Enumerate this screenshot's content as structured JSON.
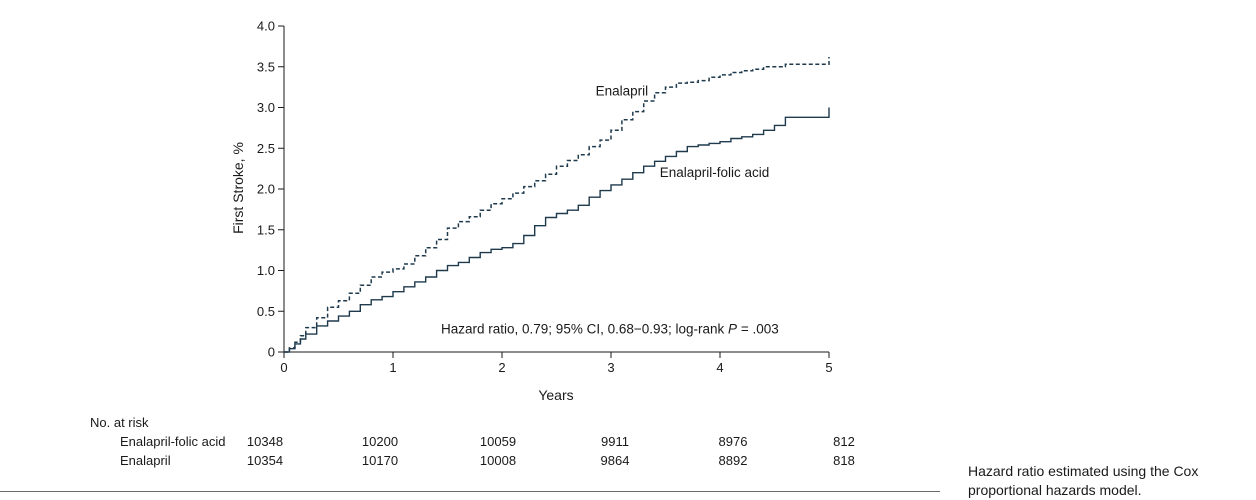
{
  "chart_data": {
    "type": "line",
    "xlabel": "Years",
    "ylabel": "First Stroke, %",
    "xlim": [
      0,
      5
    ],
    "ylim": [
      0,
      4.0
    ],
    "x_ticks": [
      0,
      1,
      2,
      3,
      4,
      5
    ],
    "x_tick_labels": [
      "0",
      "1",
      "2",
      "3",
      "4",
      "5"
    ],
    "y_ticks": [
      0,
      0.5,
      1.0,
      1.5,
      2.0,
      2.5,
      3.0,
      3.5,
      4.0
    ],
    "y_tick_labels": [
      "0",
      "0.5",
      "1.0",
      "1.5",
      "2.0",
      "2.5",
      "3.0",
      "3.5",
      "4.0"
    ],
    "grid": false,
    "series": [
      {
        "name": "Enalapril",
        "style": "dashed",
        "color": "#1f3a4d",
        "x": [
          0,
          0.05,
          0.1,
          0.15,
          0.2,
          0.3,
          0.4,
          0.5,
          0.6,
          0.7,
          0.8,
          0.9,
          1.0,
          1.1,
          1.2,
          1.3,
          1.4,
          1.5,
          1.6,
          1.7,
          1.8,
          1.9,
          2.0,
          2.1,
          2.2,
          2.3,
          2.4,
          2.5,
          2.6,
          2.7,
          2.8,
          2.9,
          3.0,
          3.1,
          3.2,
          3.3,
          3.4,
          3.5,
          3.6,
          3.7,
          3.8,
          3.9,
          4.0,
          4.1,
          4.2,
          4.3,
          4.4,
          4.5,
          4.6,
          4.7,
          4.8,
          4.9,
          4.98,
          5.0
        ],
        "y": [
          0,
          0.05,
          0.12,
          0.2,
          0.3,
          0.42,
          0.55,
          0.63,
          0.72,
          0.82,
          0.92,
          0.98,
          1.02,
          1.08,
          1.18,
          1.28,
          1.38,
          1.52,
          1.6,
          1.66,
          1.74,
          1.82,
          1.88,
          1.95,
          2.03,
          2.1,
          2.18,
          2.28,
          2.35,
          2.42,
          2.52,
          2.6,
          2.72,
          2.85,
          2.95,
          3.08,
          3.18,
          3.25,
          3.3,
          3.31,
          3.33,
          3.37,
          3.4,
          3.43,
          3.45,
          3.47,
          3.5,
          3.5,
          3.53,
          3.53,
          3.53,
          3.53,
          3.53,
          3.62
        ]
      },
      {
        "name": "Enalapril-folic acid",
        "style": "solid",
        "color": "#1f3a4d",
        "x": [
          0,
          0.05,
          0.1,
          0.15,
          0.2,
          0.3,
          0.4,
          0.5,
          0.6,
          0.7,
          0.8,
          0.9,
          1.0,
          1.1,
          1.2,
          1.3,
          1.4,
          1.5,
          1.6,
          1.7,
          1.8,
          1.9,
          2.0,
          2.1,
          2.2,
          2.3,
          2.4,
          2.5,
          2.6,
          2.7,
          2.8,
          2.9,
          3.0,
          3.1,
          3.2,
          3.3,
          3.4,
          3.5,
          3.6,
          3.7,
          3.8,
          3.9,
          4.0,
          4.1,
          4.2,
          4.3,
          4.4,
          4.5,
          4.6,
          4.7,
          4.8,
          4.9,
          4.98,
          5.0
        ],
        "y": [
          0,
          0.04,
          0.1,
          0.16,
          0.22,
          0.32,
          0.38,
          0.44,
          0.5,
          0.58,
          0.64,
          0.68,
          0.74,
          0.8,
          0.86,
          0.92,
          1.0,
          1.06,
          1.1,
          1.16,
          1.22,
          1.26,
          1.28,
          1.33,
          1.43,
          1.55,
          1.65,
          1.7,
          1.74,
          1.8,
          1.9,
          1.98,
          2.05,
          2.12,
          2.2,
          2.28,
          2.34,
          2.4,
          2.46,
          2.52,
          2.54,
          2.56,
          2.58,
          2.62,
          2.64,
          2.67,
          2.72,
          2.78,
          2.88,
          2.88,
          2.88,
          2.88,
          2.88,
          3.0
        ]
      }
    ],
    "series_labels": [
      {
        "text": "Enalapril",
        "at": [
          3.1,
          3.15
        ]
      },
      {
        "text": "Enalapril-folic acid",
        "at": [
          3.95,
          2.15
        ]
      }
    ],
    "annotation": {
      "text_prefix": "Hazard ratio, 0.79; 95% CI, 0.68−0.93; log-rank ",
      "p_symbol": "P",
      "text_suffix": " = .003",
      "at": [
        2.0,
        0.23
      ]
    },
    "risk_table": {
      "title": "No. at risk",
      "rows": [
        {
          "label": "Enalapril-folic acid",
          "counts": [
            "10348",
            "10200",
            "10059",
            "9911",
            "8976",
            "812"
          ]
        },
        {
          "label": "Enalapril",
          "counts": [
            "10354",
            "10170",
            "10008",
            "9864",
            "8892",
            "818"
          ]
        }
      ]
    }
  },
  "footnote": "Hazard ratio estimated using the Cox proportional hazards model."
}
